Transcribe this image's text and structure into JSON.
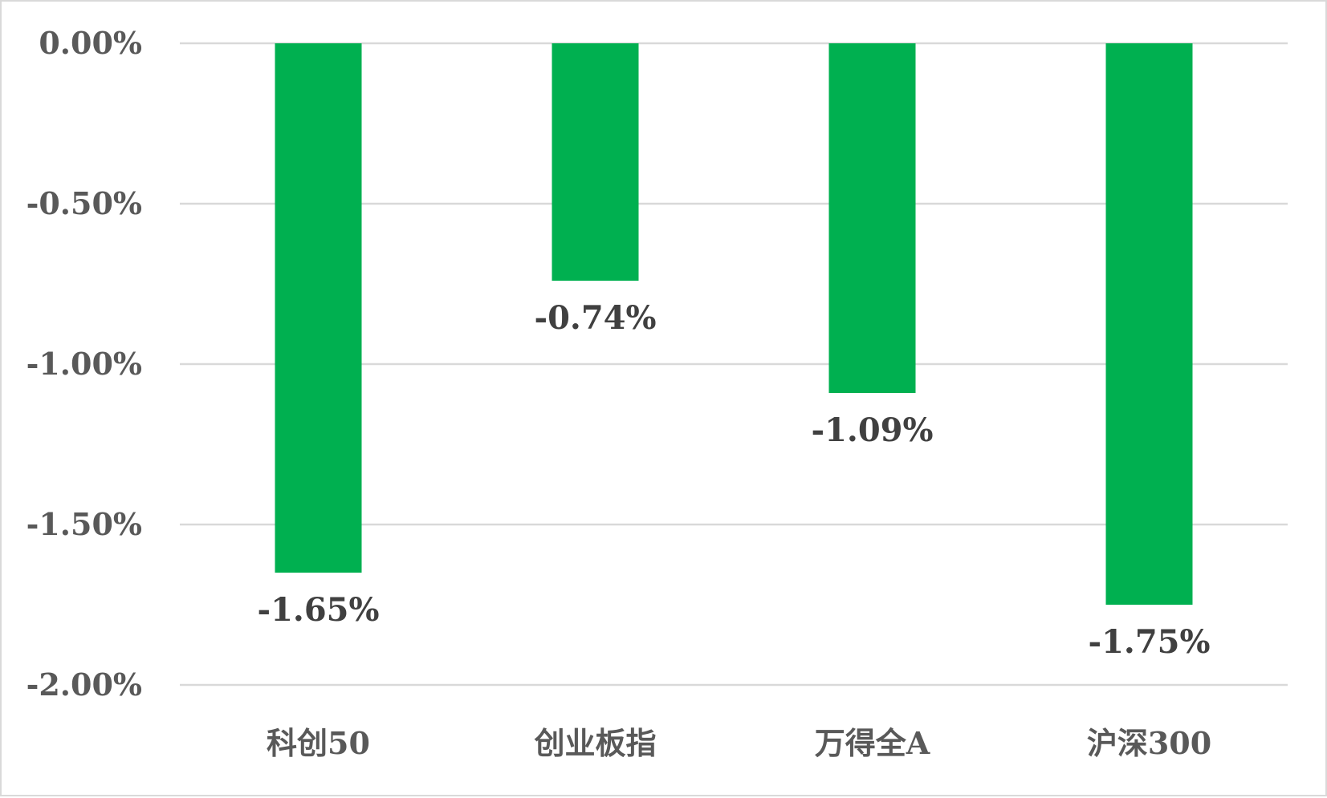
{
  "chart_data": {
    "type": "bar",
    "title": "",
    "xlabel": "",
    "ylabel": "",
    "categories": [
      "科创50",
      "创业板指",
      "万得全A",
      "沪深300"
    ],
    "values": [
      -1.65,
      -0.74,
      -1.09,
      -1.75
    ],
    "data_labels": [
      "-1.65%",
      "-0.74%",
      "-1.09%",
      "-1.75%"
    ],
    "ylim": [
      -2.0,
      0.0
    ],
    "yticks": [
      0.0,
      -0.5,
      -1.0,
      -1.5,
      -2.0
    ],
    "ytick_labels": [
      "0.00%",
      "-0.50%",
      "-1.00%",
      "-1.50%",
      "-2.00%"
    ],
    "grid": true,
    "legend": "none",
    "bar_color": "#00b050"
  }
}
